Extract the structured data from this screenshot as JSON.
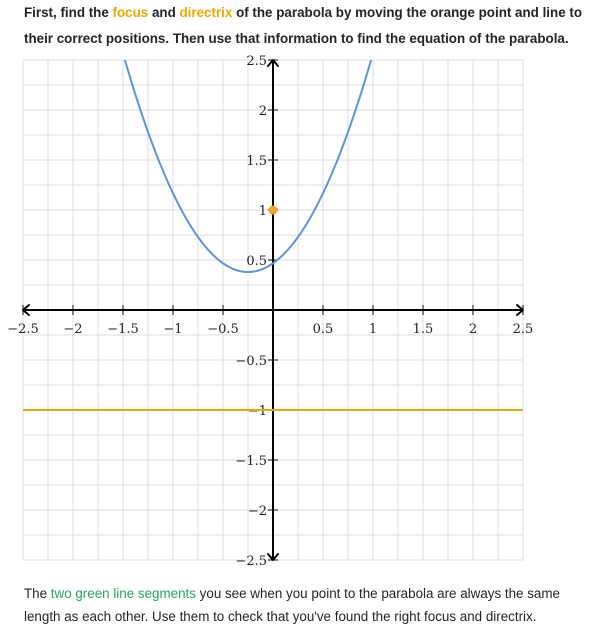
{
  "instructions": {
    "part1": "First, find the ",
    "focus_word": "focus",
    "part2": " and ",
    "directrix_word": "directrix",
    "part3": " of the parabola by moving the orange point and line to",
    "line2": "their correct positions. Then use that information to find the equation of the parabola."
  },
  "graph": {
    "x_range": [
      -2.5,
      2.5
    ],
    "y_range": [
      -2.5,
      2.5
    ],
    "grid_step": 0.25,
    "tick_step": 0.5,
    "x_tick_labels": [
      {
        "value": -2.5,
        "label": "−2.5"
      },
      {
        "value": -2,
        "label": "−2"
      },
      {
        "value": -1.5,
        "label": "−1.5"
      },
      {
        "value": -1,
        "label": "−1"
      },
      {
        "value": -0.5,
        "label": "−0.5"
      },
      {
        "value": 0.5,
        "label": "0.5"
      },
      {
        "value": 1,
        "label": "1"
      },
      {
        "value": 1.5,
        "label": "1.5"
      },
      {
        "value": 2,
        "label": "2"
      },
      {
        "value": 2.5,
        "label": "2.5"
      }
    ],
    "y_tick_labels": [
      {
        "value": 2.5,
        "label": "2.5"
      },
      {
        "value": 2,
        "label": "2"
      },
      {
        "value": 1.5,
        "label": "1.5"
      },
      {
        "value": 1,
        "label": "1"
      },
      {
        "value": 0.5,
        "label": "0.5"
      },
      {
        "value": -0.5,
        "label": "−0.5"
      },
      {
        "value": -1,
        "label": "−1"
      },
      {
        "value": -1.5,
        "label": "−1.5"
      },
      {
        "value": -2,
        "label": "−2"
      },
      {
        "value": -2.5,
        "label": "−2.5"
      }
    ],
    "parabola": {
      "a": 1.4,
      "h": -0.25,
      "k": 0.38,
      "color": "#5b93e0"
    },
    "focus_point": {
      "x": 0,
      "y": 1,
      "color": "#f5a623"
    },
    "directrix_y": -1,
    "directrix_color": "#f0a500",
    "grid_color": "#dddddd",
    "axis_color": "#000000"
  },
  "footer": {
    "part1": "The ",
    "green_text": "two green line segments",
    "part2": " you see when you point to the parabola are always the same",
    "line2": "length as each other. Use them to check that you've found the right focus and directrix.",
    "green_color": "#1fab54"
  }
}
